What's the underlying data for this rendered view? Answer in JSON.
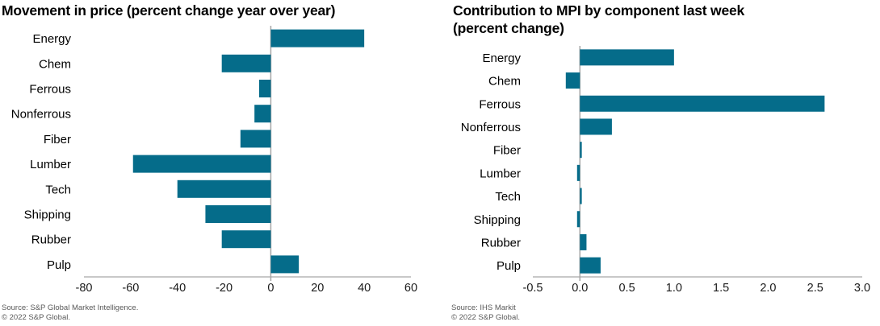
{
  "chart_data": [
    {
      "type": "bar",
      "orientation": "horizontal",
      "title_lines": [
        "Movement in price (percent change year over year)"
      ],
      "categories": [
        "Energy",
        "Chem",
        "Ferrous",
        "Nonferrous",
        "Fiber",
        "Lumber",
        "Tech",
        "Shipping",
        "Rubber",
        "Pulp"
      ],
      "values": [
        40,
        -21,
        -5,
        -7,
        -13,
        -59,
        -40,
        -28,
        -21,
        12
      ],
      "xlim": [
        -80,
        60
      ],
      "tick_values": [
        -80,
        -60,
        -40,
        -20,
        0,
        20,
        40,
        60
      ],
      "tick_labels": [
        "-80",
        "-60",
        "-40",
        "-20",
        "0",
        "20",
        "40",
        "60"
      ],
      "bar_color": "#056c8a",
      "axis_color": "#a6a6a6",
      "source": "Source: S&P Global Market Intelligence.",
      "copyright": "© 2022 S&P Global.",
      "legend": "none",
      "grid": "off"
    },
    {
      "type": "bar",
      "orientation": "horizontal",
      "title_lines": [
        "Contribution to MPI by component last week",
        "(percent change)"
      ],
      "categories": [
        "Energy",
        "Chem",
        "Ferrous",
        "Nonferrous",
        "Fiber",
        "Lumber",
        "Tech",
        "Shipping",
        "Rubber",
        "Pulp"
      ],
      "values": [
        1.0,
        -0.15,
        2.6,
        0.34,
        0.02,
        -0.03,
        0.02,
        -0.03,
        0.07,
        0.22
      ],
      "xlim": [
        -0.5,
        3.0
      ],
      "tick_values": [
        -0.5,
        0.0,
        0.5,
        1.0,
        1.5,
        2.0,
        2.5,
        3.0
      ],
      "tick_labels": [
        "-0.5",
        "0.0",
        "0.5",
        "1.0",
        "1.5",
        "2.0",
        "2.5",
        "3.0"
      ],
      "bar_color": "#056c8a",
      "axis_color": "#a6a6a6",
      "source": "Source: IHS Markit",
      "copyright": "© 2022 S&P Global.",
      "legend": "none",
      "grid": "off"
    }
  ]
}
